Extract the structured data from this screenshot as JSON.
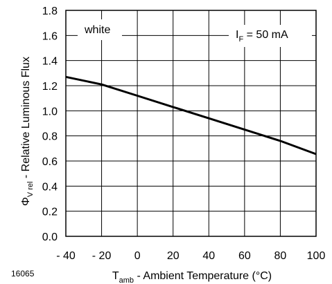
{
  "chart_data": {
    "type": "line",
    "title": "",
    "xlabel": {
      "symbol": "T",
      "subscript": "amb",
      "text": " - Ambient Temperature (°C)"
    },
    "ylabel": {
      "symbol": "Φ",
      "subscript": "V rel",
      "text": " - Relative Luminous Flux"
    },
    "xlim": [
      -40,
      100
    ],
    "ylim": [
      0.0,
      1.8
    ],
    "x_ticks": [
      -40,
      -20,
      0,
      20,
      40,
      60,
      80,
      100
    ],
    "x_tick_labels": [
      "- 40",
      "- 20",
      "0",
      "20",
      "40",
      "60",
      "80",
      "100"
    ],
    "y_ticks": [
      0.0,
      0.2,
      0.4,
      0.6,
      0.8,
      1.0,
      1.2,
      1.4,
      1.6,
      1.8
    ],
    "y_tick_labels": [
      "0.0",
      "0.2",
      "0.4",
      "0.6",
      "0.8",
      "1.0",
      "1.2",
      "1.4",
      "1.6",
      "1.8"
    ],
    "grid": true,
    "series": [
      {
        "name": "white",
        "x": [
          -40,
          -20,
          0,
          20,
          40,
          60,
          80,
          100
        ],
        "y": [
          1.27,
          1.21,
          1.12,
          1.03,
          0.94,
          0.85,
          0.76,
          0.655
        ]
      }
    ],
    "annotations": {
      "series_label": "white",
      "condition": {
        "symbol": "I",
        "subscript": "F",
        "text": " = 50 mA"
      }
    },
    "figure_number": "16065"
  }
}
